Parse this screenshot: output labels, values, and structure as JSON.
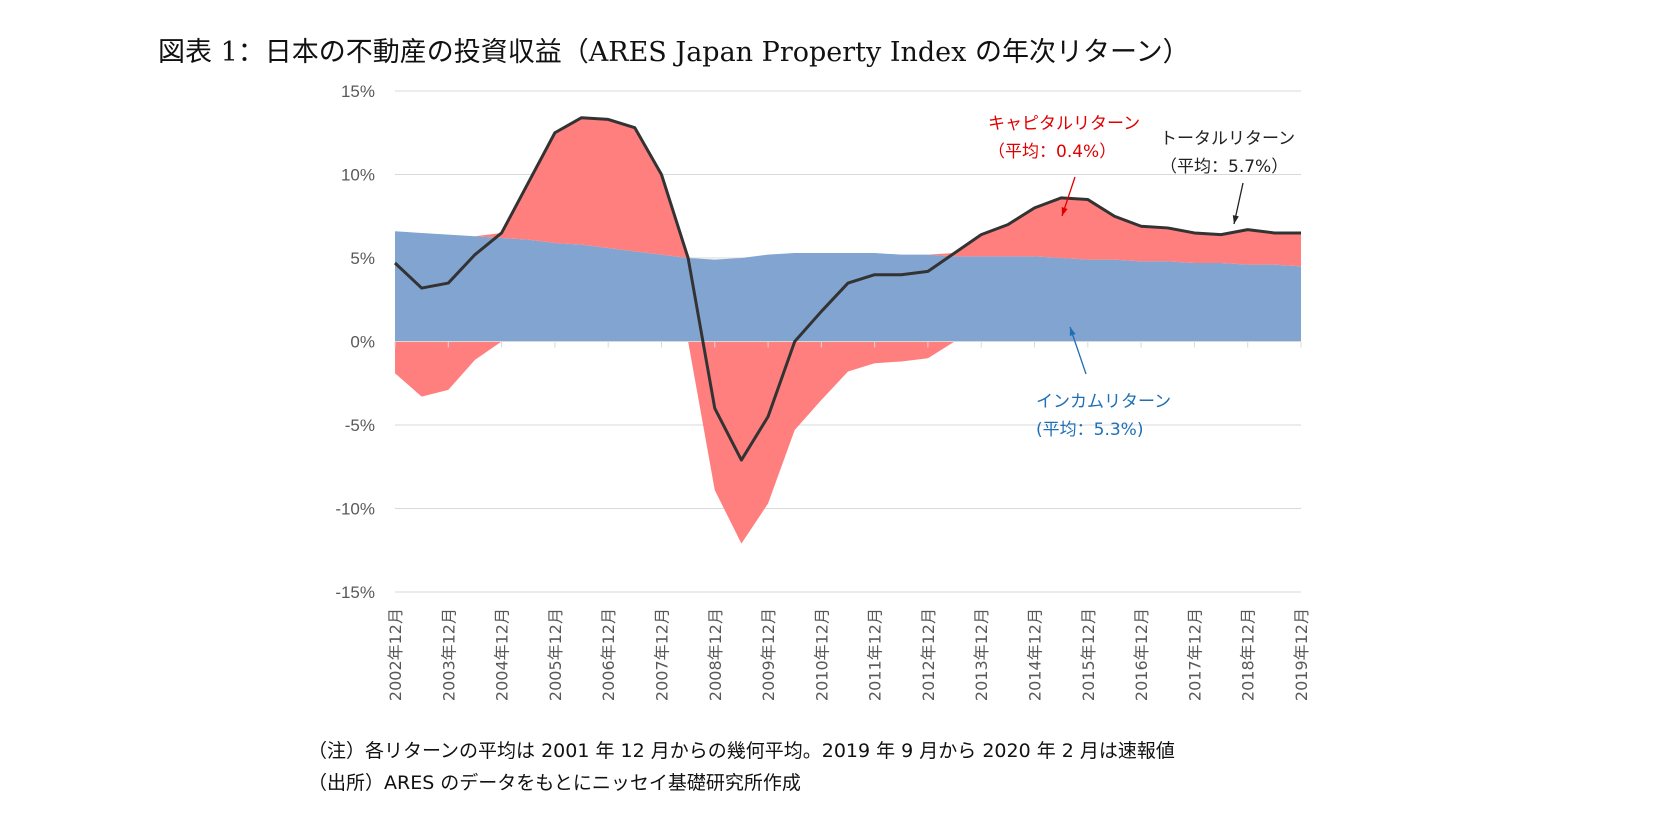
{
  "title": "図表 1：日本の不動産の投資収益（ARES Japan Property Index の年次リターン）",
  "notes": [
    "（注）各リターンの平均は 2001 年 12 月からの幾何平均。2019 年 9 月から 2020 年 2 月は速報値",
    "（出所）ARES のデータをもとにニッセイ基礎研究所作成"
  ],
  "annotations": {
    "capital": {
      "line1": "キャピタルリターン",
      "line2": "（平均：0.4%）",
      "color": "#e00000"
    },
    "total": {
      "line1": "トータルリターン",
      "line2": "（平均：5.7%）",
      "color": "#222222"
    },
    "income": {
      "line1": "インカムリターン",
      "line2": "(平均：5.3%)",
      "color": "#1f6fb5"
    }
  },
  "chart_data": {
    "type": "area",
    "ylim": [
      -15,
      15
    ],
    "yticks": [
      "15%",
      "10%",
      "5%",
      "0%",
      "-5%",
      "-10%",
      "-15%"
    ],
    "ytick_values": [
      15,
      10,
      5,
      0,
      -5,
      -10,
      -15
    ],
    "xticks": [
      "2002年12月",
      "2003年12月",
      "2004年12月",
      "2005年12月",
      "2006年12月",
      "2007年12月",
      "2008年12月",
      "2009年12月",
      "2010年12月",
      "2011年12月",
      "2012年12月",
      "2013年12月",
      "2014年12月",
      "2015年12月",
      "2016年12月",
      "2017年12月",
      "2018年12月",
      "2019年12月"
    ],
    "grid": true,
    "x": [
      "2002-12",
      "2003-06",
      "2003-12",
      "2004-06",
      "2004-12",
      "2005-06",
      "2005-12",
      "2006-06",
      "2006-12",
      "2007-06",
      "2007-12",
      "2008-06",
      "2008-12",
      "2009-06",
      "2009-12",
      "2010-06",
      "2010-12",
      "2011-06",
      "2011-12",
      "2012-06",
      "2012-12",
      "2013-06",
      "2013-12",
      "2014-06",
      "2014-12",
      "2015-06",
      "2015-12",
      "2016-06",
      "2016-12",
      "2017-06",
      "2017-12",
      "2018-06",
      "2018-12",
      "2019-06",
      "2019-12"
    ],
    "series": [
      {
        "name": "インカムリターン",
        "color": "#81a5d0",
        "values": [
          6.6,
          6.5,
          6.4,
          6.3,
          6.2,
          6.1,
          5.9,
          5.8,
          5.6,
          5.4,
          5.2,
          5.0,
          4.9,
          5.0,
          5.2,
          5.3,
          5.3,
          5.3,
          5.3,
          5.2,
          5.2,
          5.1,
          5.1,
          5.1,
          5.1,
          5.0,
          4.9,
          4.9,
          4.8,
          4.8,
          4.7,
          4.7,
          4.6,
          4.6,
          4.5
        ]
      },
      {
        "name": "キャピタルリターン",
        "color": "#ff7f7f",
        "values": [
          -1.9,
          -3.3,
          -2.9,
          -1.1,
          0.3,
          3.4,
          6.6,
          7.6,
          7.7,
          7.4,
          4.8,
          0.0,
          -8.9,
          -12.1,
          -9.7,
          -5.3,
          -3.5,
          -1.8,
          -1.3,
          -1.2,
          -1.0,
          0.2,
          1.3,
          1.9,
          2.9,
          3.6,
          3.6,
          2.6,
          2.1,
          2.0,
          1.8,
          1.7,
          2.1,
          1.9,
          2.0
        ]
      },
      {
        "name": "トータルリターン",
        "color": "#333333",
        "values": [
          4.7,
          3.2,
          3.5,
          5.2,
          6.5,
          9.5,
          12.5,
          13.4,
          13.3,
          12.8,
          10.0,
          5.0,
          -4.0,
          -7.1,
          -4.5,
          0.0,
          1.8,
          3.5,
          4.0,
          4.0,
          4.2,
          5.3,
          6.4,
          7.0,
          8.0,
          8.6,
          8.5,
          7.5,
          6.9,
          6.8,
          6.5,
          6.4,
          6.7,
          6.5,
          6.5
        ]
      }
    ]
  }
}
